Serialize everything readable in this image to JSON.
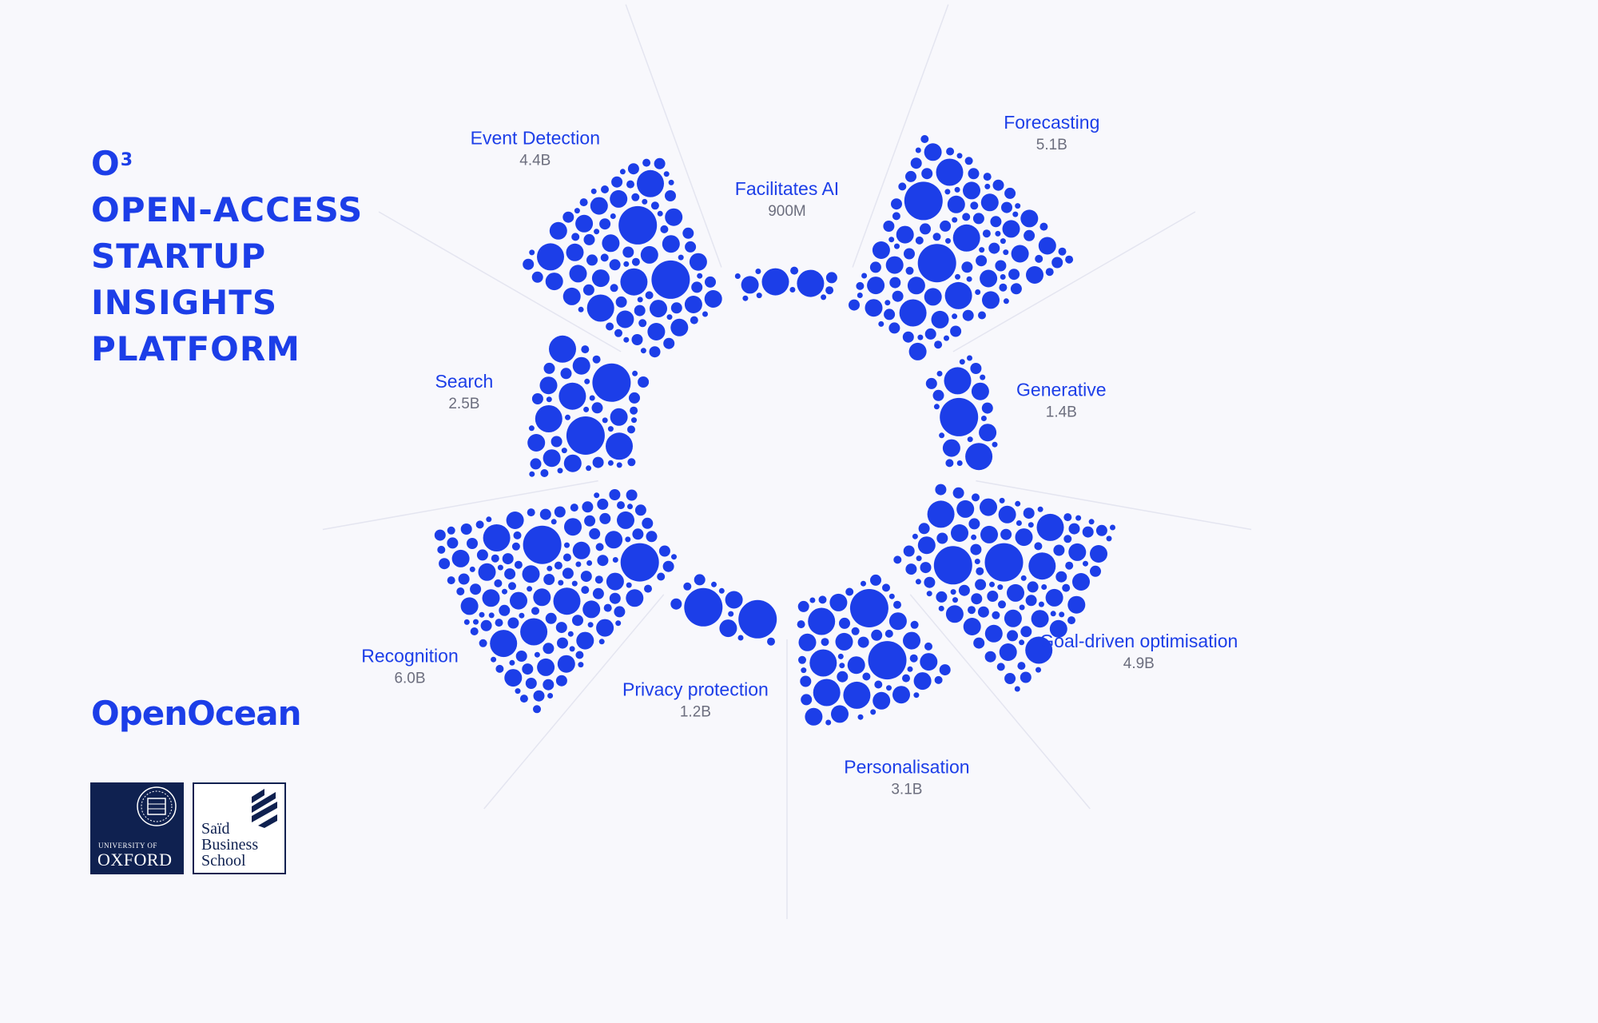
{
  "title": {
    "o3_base": "O",
    "o3_sup": "3",
    "lines": [
      "OPEN-ACCESS",
      "STARTUP",
      "INSIGHTS",
      "PLATFORM"
    ]
  },
  "brand": "OpenOcean",
  "logos": {
    "oxford_top": "UNIVERSITY OF",
    "oxford_bottom": "OXFORD",
    "said_lines": [
      "Saïd",
      "Business",
      "School"
    ]
  },
  "colors": {
    "accent": "#1c3ee8",
    "value_text": "#6c6e7e",
    "background": "#f8f8fc",
    "oxford_navy": "#0f2150"
  },
  "chart_data": {
    "type": "radial-bubble",
    "unit": "B",
    "categories": [
      "Event Detection",
      "Facilitates AI",
      "Forecasting",
      "Generative",
      "Goal-driven optimisation",
      "Personalisation",
      "Privacy protection",
      "Recognition",
      "Search"
    ],
    "values": [
      4.4,
      0.9,
      5.1,
      1.4,
      4.9,
      3.1,
      1.2,
      6.0,
      2.5
    ],
    "value_labels": [
      "4.4B",
      "900M",
      "5.1B",
      "1.4B",
      "4.9B",
      "3.1B",
      "1.2B",
      "6.0B",
      "2.5B"
    ],
    "legend": "none",
    "grid": false
  }
}
